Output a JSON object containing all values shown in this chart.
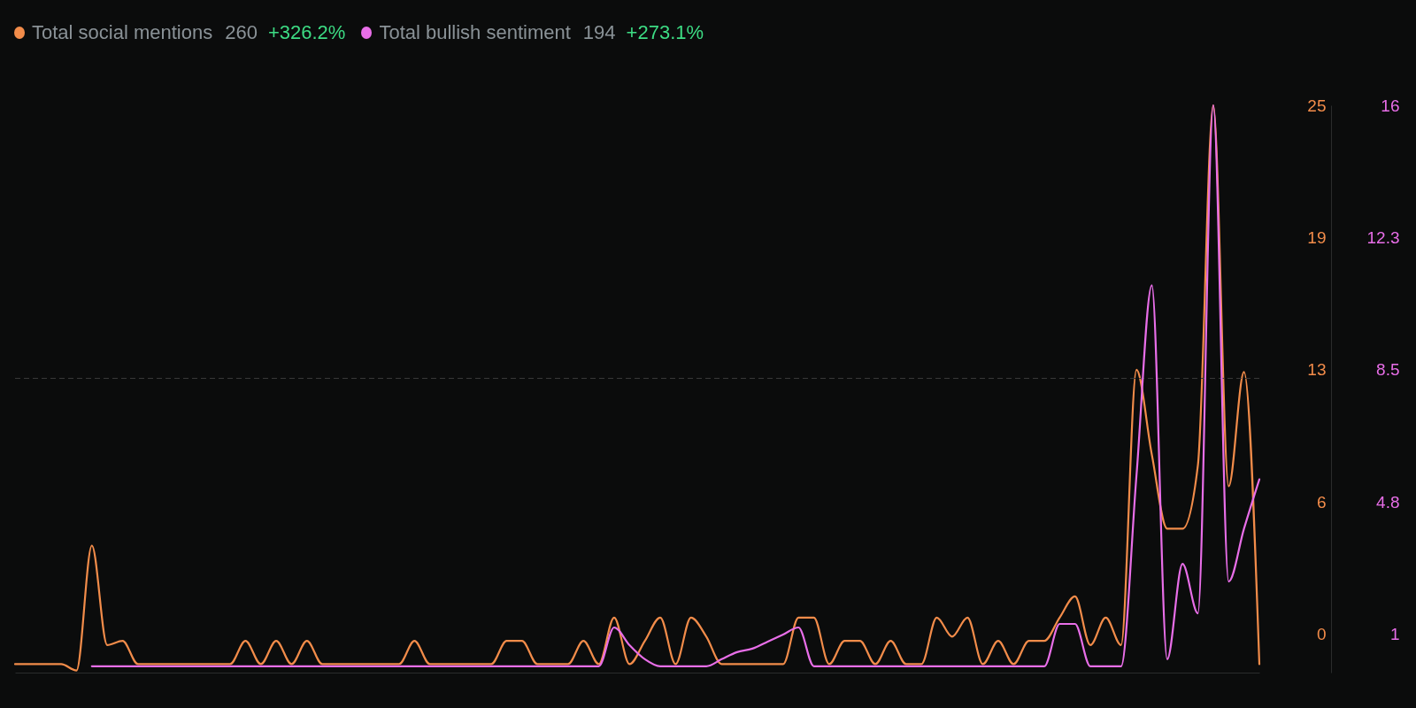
{
  "chart_data": {
    "type": "line",
    "categories": [
      null,
      null,
      null,
      null,
      null,
      null,
      null,
      null,
      null,
      null,
      null,
      null,
      null,
      null,
      null,
      null,
      null,
      null,
      null,
      null,
      null,
      null,
      null,
      null,
      null,
      null,
      null,
      null,
      null,
      null,
      null,
      null,
      null,
      null,
      null,
      null,
      null,
      null,
      null,
      null,
      null,
      null,
      null,
      null,
      null,
      null,
      null,
      null,
      null,
      null,
      null,
      null,
      null,
      null,
      null,
      null,
      null,
      null,
      null,
      null,
      null,
      null,
      null,
      null,
      null,
      null,
      null,
      null,
      null,
      null,
      null,
      null,
      null,
      null,
      null,
      null,
      null,
      null,
      null,
      null,
      null,
      null
    ],
    "series": [
      {
        "name": "Total social mentions",
        "color": "#f28c4a",
        "axis": "y",
        "values": [
          -1.4,
          -1.4,
          -1.4,
          -1.4,
          -1.7,
          4.2,
          -0.5,
          -0.3,
          -1.4,
          -1.4,
          -1.4,
          -1.4,
          -1.4,
          -1.4,
          -1.4,
          -0.3,
          -1.4,
          -0.3,
          -1.4,
          -0.3,
          -1.4,
          -1.4,
          -1.4,
          -1.4,
          -1.4,
          -1.4,
          -0.3,
          -1.4,
          -1.4,
          -1.4,
          -1.4,
          -1.4,
          -0.3,
          -0.3,
          -1.4,
          -1.4,
          -1.4,
          -0.3,
          -1.4,
          0.8,
          -1.4,
          -0.3,
          0.8,
          -1.4,
          0.8,
          -0.1,
          -1.4,
          -1.4,
          -1.4,
          -1.4,
          -1.4,
          0.8,
          0.8,
          -1.4,
          -0.3,
          -0.3,
          -1.4,
          -0.3,
          -1.4,
          -1.4,
          0.8,
          -0.1,
          0.8,
          -1.4,
          -0.3,
          -1.4,
          -0.3,
          -0.3,
          0.8,
          1.8,
          -0.5,
          0.8,
          -0.5,
          12.5,
          8.5,
          5,
          5,
          8,
          25,
          7,
          12.4,
          -1.4
        ]
      },
      {
        "name": "Total bullish sentiment",
        "color": "#e86ee8",
        "axis": "y2",
        "values": [
          null,
          null,
          null,
          null,
          null,
          0.1,
          0.1,
          0.1,
          0.1,
          0.1,
          0.1,
          0.1,
          0.1,
          0.1,
          0.1,
          0.1,
          0.1,
          0.1,
          0.1,
          0.1,
          0.1,
          0.1,
          0.1,
          0.1,
          0.1,
          0.1,
          0.1,
          0.1,
          0.1,
          0.1,
          0.1,
          0.1,
          0.1,
          0.1,
          0.1,
          0.1,
          0.1,
          0.1,
          0.1,
          1.2,
          0.7,
          0.3,
          0.1,
          0.1,
          0.1,
          0.1,
          0.3,
          0.5,
          0.6,
          0.8,
          1.0,
          1.2,
          0.1,
          0.1,
          0.1,
          0.1,
          0.1,
          0.1,
          0.1,
          0.1,
          0.1,
          0.1,
          0.1,
          0.1,
          0.1,
          0.1,
          0.1,
          0.1,
          1.3,
          1.3,
          0.1,
          0.1,
          0.1,
          5.5,
          10.9,
          0.3,
          3.0,
          1.6,
          16,
          2.5,
          4.0,
          5.4
        ]
      }
    ],
    "ylim": [
      -1.8,
      25
    ],
    "yticks": [
      0,
      {
        "value": 6.25,
        "label": "6"
      },
      {
        "value": 12.5,
        "label": "13"
      },
      {
        "value": 18.75,
        "label": "19"
      },
      25
    ],
    "y2lim": [
      -0.08,
      16
    ],
    "y2ticks": [
      1,
      {
        "value": 4.75,
        "label": "4.8"
      },
      8.5,
      {
        "value": 12.25,
        "label": "12.3"
      },
      16
    ],
    "ref_lines": [
      {
        "axis": "y",
        "value": 12.1,
        "color": "#3a3a3a",
        "line_style": "dashed"
      }
    ],
    "annotations": [
      "260",
      "+326.2%",
      "194",
      "+273.1%"
    ],
    "legend": "top left",
    "grid": false,
    "tick_labels": "y",
    "marker": "none",
    "line_style": "solid"
  }
}
